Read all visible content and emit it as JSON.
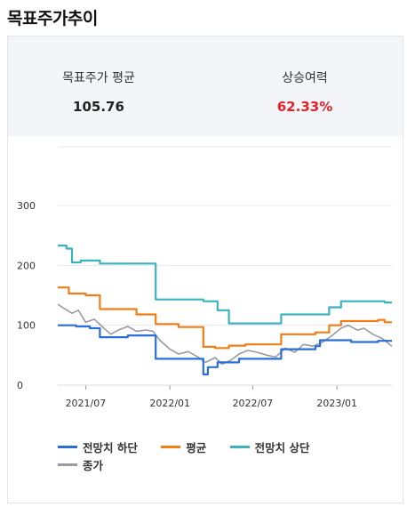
{
  "page": {
    "title": "목표주가추이"
  },
  "summary": {
    "avg_label": "목표주가 평균",
    "avg_value": "105.76",
    "upside_label": "상승여력",
    "upside_value": "62.33%",
    "upside_color": "#e8202a"
  },
  "chart_data": {
    "type": "line",
    "ylim": [
      0,
      300
    ],
    "yticks": [
      "0",
      "100",
      "200",
      "300"
    ],
    "xticks": [
      "2021/07",
      "2022/01",
      "2022/07",
      "2023/01"
    ],
    "grid": true,
    "legend_placement": "bottom",
    "series": [
      {
        "name": "전망치 하단",
        "color": "#2a6fd6",
        "points": [
          [
            "2021/05/01",
            100
          ],
          [
            "2021/06/10",
            100
          ],
          [
            "2021/06/10",
            98
          ],
          [
            "2021/07/10",
            98
          ],
          [
            "2021/07/10",
            95
          ],
          [
            "2021/08/01",
            95
          ],
          [
            "2021/08/01",
            80
          ],
          [
            "2021/10/01",
            80
          ],
          [
            "2021/10/01",
            83
          ],
          [
            "2021/12/01",
            83
          ],
          [
            "2021/12/01",
            44
          ],
          [
            "2022/03/15",
            44
          ],
          [
            "2022/03/15",
            18
          ],
          [
            "2022/03/25",
            18
          ],
          [
            "2022/03/25",
            30
          ],
          [
            "2022/04/15",
            30
          ],
          [
            "2022/04/15",
            38
          ],
          [
            "2022/06/01",
            38
          ],
          [
            "2022/06/01",
            44
          ],
          [
            "2022/09/01",
            44
          ],
          [
            "2022/09/01",
            60
          ],
          [
            "2022/11/15",
            60
          ],
          [
            "2022/11/15",
            65
          ],
          [
            "2022/11/25",
            65
          ],
          [
            "2022/11/25",
            75
          ],
          [
            "2023/02/01",
            75
          ],
          [
            "2023/02/01",
            72
          ],
          [
            "2023/04/01",
            72
          ],
          [
            "2023/04/01",
            74
          ],
          [
            "2023/05/01",
            74
          ]
        ]
      },
      {
        "name": "평균",
        "color": "#f07d16",
        "points": [
          [
            "2021/05/01",
            163
          ],
          [
            "2021/05/25",
            163
          ],
          [
            "2021/05/25",
            153
          ],
          [
            "2021/07/01",
            153
          ],
          [
            "2021/07/01",
            150
          ],
          [
            "2021/08/01",
            150
          ],
          [
            "2021/08/01",
            127
          ],
          [
            "2021/10/20",
            127
          ],
          [
            "2021/10/20",
            118
          ],
          [
            "2021/12/01",
            118
          ],
          [
            "2021/12/01",
            102
          ],
          [
            "2022/01/20",
            102
          ],
          [
            "2022/01/20",
            97
          ],
          [
            "2022/03/15",
            97
          ],
          [
            "2022/03/15",
            64
          ],
          [
            "2022/04/10",
            64
          ],
          [
            "2022/04/10",
            62
          ],
          [
            "2022/05/10",
            62
          ],
          [
            "2022/05/10",
            66
          ],
          [
            "2022/06/15",
            66
          ],
          [
            "2022/06/15",
            68
          ],
          [
            "2022/09/01",
            68
          ],
          [
            "2022/09/01",
            85
          ],
          [
            "2022/11/15",
            85
          ],
          [
            "2022/11/15",
            88
          ],
          [
            "2022/12/15",
            88
          ],
          [
            "2022/12/15",
            100
          ],
          [
            "2023/01/10",
            100
          ],
          [
            "2023/01/10",
            107
          ],
          [
            "2023/04/01",
            107
          ],
          [
            "2023/04/01",
            109
          ],
          [
            "2023/04/15",
            109
          ],
          [
            "2023/04/15",
            105
          ],
          [
            "2023/05/01",
            105
          ]
        ]
      },
      {
        "name": "전망치 상단",
        "color": "#3bb2bd",
        "points": [
          [
            "2021/05/01",
            233
          ],
          [
            "2021/05/20",
            233
          ],
          [
            "2021/05/20",
            228
          ],
          [
            "2021/06/01",
            228
          ],
          [
            "2021/06/01",
            205
          ],
          [
            "2021/06/20",
            205
          ],
          [
            "2021/06/20",
            208
          ],
          [
            "2021/08/01",
            208
          ],
          [
            "2021/08/01",
            203
          ],
          [
            "2021/12/01",
            203
          ],
          [
            "2021/12/01",
            143
          ],
          [
            "2022/03/15",
            143
          ],
          [
            "2022/03/15",
            140
          ],
          [
            "2022/04/15",
            140
          ],
          [
            "2022/04/15",
            125
          ],
          [
            "2022/05/10",
            125
          ],
          [
            "2022/05/10",
            103
          ],
          [
            "2022/09/01",
            103
          ],
          [
            "2022/09/01",
            118
          ],
          [
            "2022/12/15",
            118
          ],
          [
            "2022/12/15",
            130
          ],
          [
            "2023/01/10",
            130
          ],
          [
            "2023/01/10",
            140
          ],
          [
            "2023/04/15",
            140
          ],
          [
            "2023/04/15",
            138
          ],
          [
            "2023/05/01",
            138
          ]
        ]
      },
      {
        "name": "종가",
        "color": "#999aa3",
        "points": [
          [
            "2021/05/01",
            135
          ],
          [
            "2021/05/15",
            128
          ],
          [
            "2021/06/01",
            120
          ],
          [
            "2021/06/15",
            125
          ],
          [
            "2021/07/01",
            105
          ],
          [
            "2021/07/20",
            110
          ],
          [
            "2021/08/10",
            95
          ],
          [
            "2021/08/25",
            85
          ],
          [
            "2021/09/10",
            92
          ],
          [
            "2021/10/01",
            98
          ],
          [
            "2021/10/20",
            90
          ],
          [
            "2021/11/10",
            92
          ],
          [
            "2021/11/25",
            90
          ],
          [
            "2021/12/10",
            75
          ],
          [
            "2022/01/01",
            60
          ],
          [
            "2022/01/20",
            52
          ],
          [
            "2022/02/10",
            56
          ],
          [
            "2022/03/01",
            48
          ],
          [
            "2022/03/20",
            38
          ],
          [
            "2022/04/10",
            46
          ],
          [
            "2022/04/25",
            35
          ],
          [
            "2022/05/15",
            42
          ],
          [
            "2022/06/01",
            52
          ],
          [
            "2022/06/20",
            58
          ],
          [
            "2022/07/10",
            55
          ],
          [
            "2022/08/01",
            50
          ],
          [
            "2022/08/20",
            47
          ],
          [
            "2022/09/10",
            62
          ],
          [
            "2022/10/01",
            55
          ],
          [
            "2022/10/20",
            68
          ],
          [
            "2022/11/10",
            65
          ],
          [
            "2022/12/01",
            72
          ],
          [
            "2022/12/20",
            82
          ],
          [
            "2023/01/10",
            95
          ],
          [
            "2023/01/25",
            100
          ],
          [
            "2023/02/15",
            92
          ],
          [
            "2023/03/01",
            95
          ],
          [
            "2023/03/20",
            85
          ],
          [
            "2023/04/10",
            78
          ],
          [
            "2023/05/01",
            65
          ]
        ]
      }
    ]
  }
}
